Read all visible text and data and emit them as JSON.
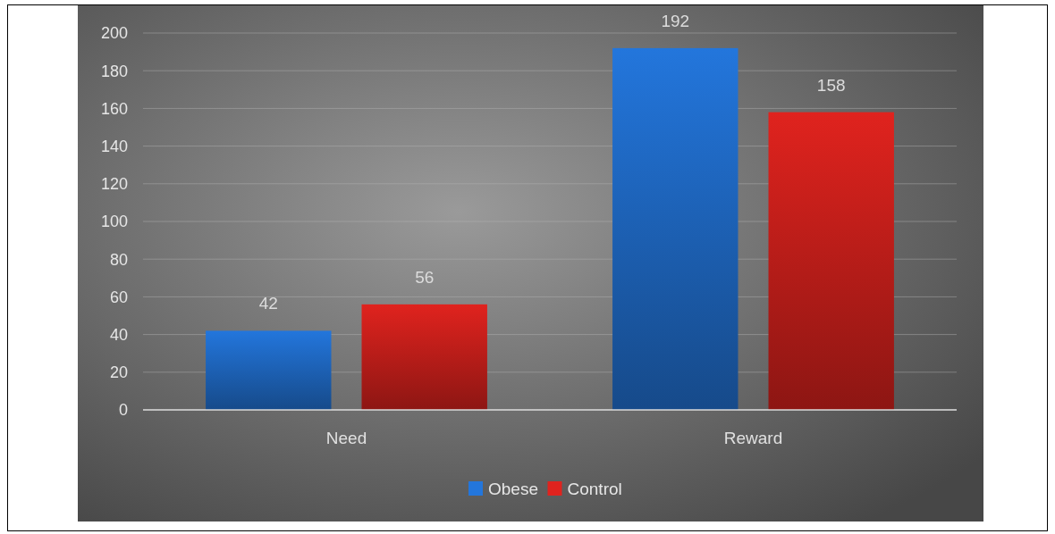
{
  "chart_data": {
    "type": "bar",
    "categories": [
      "Need",
      "Reward"
    ],
    "series": [
      {
        "name": "Obese",
        "color": "#2376dc",
        "values": [
          42,
          192
        ]
      },
      {
        "name": "Control",
        "color": "#e0231e",
        "values": [
          56,
          158
        ]
      }
    ],
    "ylim": [
      0,
      200
    ],
    "yticks": [
      0,
      20,
      40,
      60,
      80,
      100,
      120,
      140,
      160,
      180,
      200
    ],
    "grid": "y",
    "legend": "bottom",
    "data_labels": true
  }
}
